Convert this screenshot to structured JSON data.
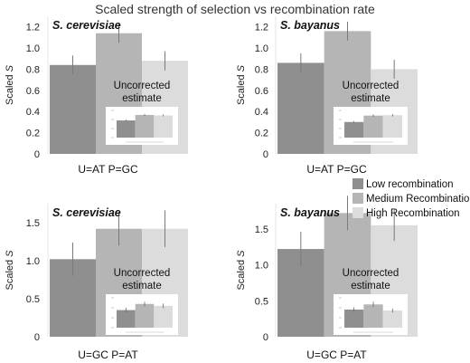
{
  "title": "Scaled strength of selection vs recombination rate",
  "legend": [
    {
      "label": "Low recombination",
      "color": "#8f8f8f"
    },
    {
      "label": "Medium Recombination",
      "color": "#b5b5b5"
    },
    {
      "label": "High Recombination",
      "color": "#dcdcdc"
    }
  ],
  "chart_data": [
    {
      "type": "bar",
      "panel": "top-left",
      "species": "S. cerevisiae",
      "xlabel": "U=AT P=GC",
      "ylabel": "Scaled S",
      "ylim": [
        0,
        1.3
      ],
      "yticks": [
        "0",
        "0.2",
        "0.4",
        "0.6",
        "0.8",
        "1.0",
        "1.2"
      ],
      "categories": [
        "Low recombination",
        "Medium Recombination",
        "High Recombination"
      ],
      "values": [
        0.84,
        1.14,
        0.88
      ],
      "errors": [
        0.09,
        0.09,
        0.09
      ],
      "inset_label": "Uncorrected estimate",
      "inset_values": [
        0.85,
        1.12,
        1.1
      ],
      "inset_errors": [
        0.04,
        0.05,
        0.05
      ]
    },
    {
      "type": "bar",
      "panel": "top-right",
      "species": "S. bayanus",
      "xlabel": "U=AT P=GC",
      "ylabel": "Scaled S",
      "ylim": [
        0,
        1.3
      ],
      "yticks": [
        "0",
        "0.2",
        "0.4",
        "0.6",
        "0.8",
        "1.0",
        "1.2"
      ],
      "categories": [
        "Low recombination",
        "Medium Recombination",
        "High Recombination"
      ],
      "values": [
        0.86,
        1.16,
        0.8
      ],
      "errors": [
        0.09,
        0.09,
        0.09
      ],
      "inset_label": "Uncorrected estimate",
      "inset_values": [
        0.78,
        1.1,
        1.12
      ],
      "inset_errors": [
        0.05,
        0.06,
        0.06
      ]
    },
    {
      "type": "bar",
      "panel": "bottom-left",
      "species": "S. cerevisiae",
      "xlabel": "U=GC P=AT",
      "ylabel": "Scaled S",
      "ylim": [
        0,
        1.75
      ],
      "yticks": [
        "0",
        "0.5",
        "1.0",
        "1.5"
      ],
      "categories": [
        "Low recombination",
        "Medium Recombination",
        "High Recombination"
      ],
      "values": [
        1.02,
        1.42,
        1.42
      ],
      "errors": [
        0.22,
        0.22,
        0.24
      ],
      "inset_label": "Uncorrected estimate",
      "inset_values": [
        0.95,
        1.28,
        1.18
      ],
      "inset_errors": [
        0.12,
        0.12,
        0.12
      ]
    },
    {
      "type": "bar",
      "panel": "bottom-right",
      "species": "S. bayanus",
      "xlabel": "U=GC P=AT",
      "ylabel": "Scaled S",
      "ylim": [
        0,
        1.85
      ],
      "yticks": [
        "0",
        "0.5",
        "1.0",
        "1.5"
      ],
      "categories": [
        "Low recombination",
        "Medium Recombination",
        "High Recombination"
      ],
      "values": [
        1.22,
        1.72,
        1.55
      ],
      "errors": [
        0.24,
        0.24,
        0.22
      ],
      "inset_label": "Uncorrected estimate",
      "inset_values": [
        0.95,
        1.22,
        0.9
      ],
      "inset_errors": [
        0.12,
        0.14,
        0.1
      ]
    }
  ]
}
